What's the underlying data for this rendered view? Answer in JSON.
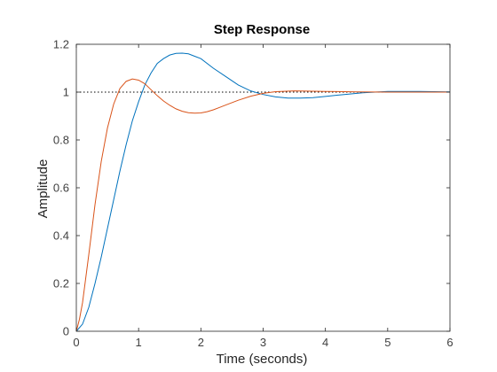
{
  "chart_data": {
    "type": "line",
    "title": "Step Response",
    "xlabel": "Time (seconds)",
    "ylabel": "Amplitude",
    "xlim": [
      0,
      6
    ],
    "ylim": [
      0,
      1.2
    ],
    "xticks": [
      0,
      1,
      2,
      3,
      4,
      5,
      6
    ],
    "yticks": [
      0,
      0.2,
      0.4,
      0.6,
      0.8,
      1,
      1.2
    ],
    "xtick_labels": [
      "0",
      "1",
      "2",
      "3",
      "4",
      "5",
      "6"
    ],
    "ytick_labels": [
      "0",
      "0.2",
      "0.4",
      "0.6",
      "0.8",
      "1",
      "1.2"
    ],
    "grid": false,
    "reference_line": {
      "y": 1,
      "style": "dotted",
      "color": "#000000"
    },
    "series": [
      {
        "color": "#0072bd",
        "x": [
          0,
          0.1,
          0.2,
          0.3,
          0.4,
          0.5,
          0.6,
          0.7,
          0.8,
          0.9,
          1.0,
          1.1,
          1.2,
          1.3,
          1.4,
          1.5,
          1.6,
          1.7,
          1.8,
          1.9,
          2.0,
          2.2,
          2.4,
          2.6,
          2.8,
          3.0,
          3.2,
          3.4,
          3.6,
          3.8,
          4.0,
          4.3,
          4.6,
          5.0,
          5.5,
          6.0
        ],
        "values": [
          0,
          0.03,
          0.1,
          0.2,
          0.31,
          0.43,
          0.55,
          0.67,
          0.78,
          0.88,
          0.96,
          1.03,
          1.08,
          1.12,
          1.14,
          1.155,
          1.162,
          1.163,
          1.16,
          1.15,
          1.14,
          1.1,
          1.065,
          1.03,
          1.005,
          0.99,
          0.98,
          0.975,
          0.975,
          0.977,
          0.982,
          0.99,
          0.997,
          1.003,
          1.003,
          1.001
        ]
      },
      {
        "color": "#d95319",
        "x": [
          0,
          0.05,
          0.1,
          0.2,
          0.3,
          0.4,
          0.5,
          0.6,
          0.7,
          0.8,
          0.9,
          1.0,
          1.1,
          1.2,
          1.3,
          1.4,
          1.5,
          1.6,
          1.7,
          1.8,
          1.9,
          2.0,
          2.1,
          2.2,
          2.3,
          2.4,
          2.6,
          2.8,
          3.0,
          3.2,
          3.5,
          4.0,
          4.5,
          5.0,
          6.0
        ],
        "values": [
          0,
          0.05,
          0.12,
          0.32,
          0.53,
          0.71,
          0.85,
          0.95,
          1.015,
          1.045,
          1.055,
          1.05,
          1.035,
          1.01,
          0.985,
          0.963,
          0.945,
          0.93,
          0.92,
          0.914,
          0.912,
          0.913,
          0.918,
          0.926,
          0.936,
          0.946,
          0.966,
          0.983,
          0.995,
          1.002,
          1.005,
          1.003,
          1.001,
          1.0,
          1.0
        ]
      }
    ]
  }
}
